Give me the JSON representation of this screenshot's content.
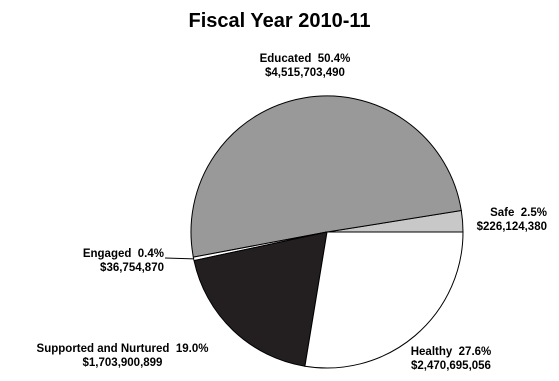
{
  "chart_data": {
    "type": "pie",
    "title": "Fiscal Year 2010-11",
    "slices": [
      {
        "name": "Safe",
        "percent": "2.5%",
        "amount": "$226,124,380",
        "value": 226124380,
        "color": "#c8c8c8"
      },
      {
        "name": "Educated",
        "percent": "50.4%",
        "amount": "$4,515,703,490",
        "value": 4515703490,
        "color": "#999999"
      },
      {
        "name": "Engaged",
        "percent": "0.4%",
        "amount": "$36,754,870",
        "value": 36754870,
        "color": "#ffffff"
      },
      {
        "name": "Supported and Nurtured",
        "percent": "19.0%",
        "amount": "$1,703,900,899",
        "value": 1703900899,
        "color": "#231f20"
      },
      {
        "name": "Healthy",
        "percent": "27.6%",
        "amount": "$2,470,695,056",
        "value": 2470695056,
        "color": "#ffffff"
      }
    ]
  }
}
